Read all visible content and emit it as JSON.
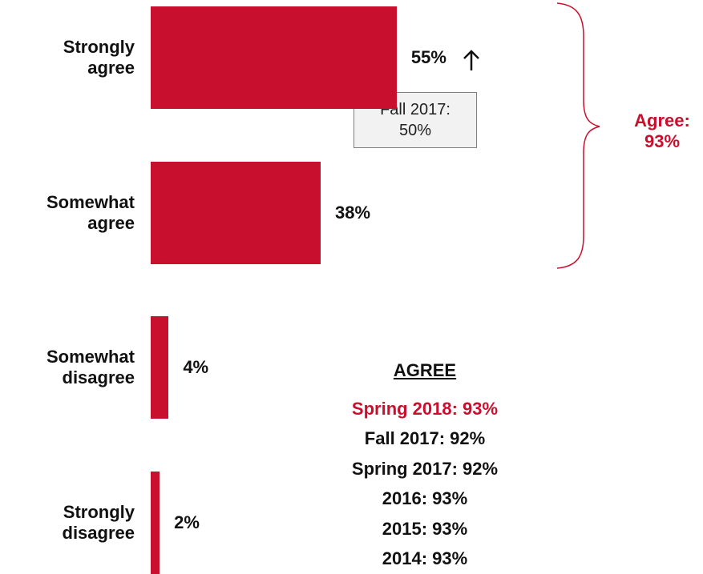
{
  "chart_data": {
    "type": "bar",
    "orientation": "horizontal",
    "categories": [
      "Strongly agree",
      "Somewhat agree",
      "Somewhat disagree",
      "Strongly disagree"
    ],
    "values": [
      55,
      38,
      4,
      2
    ],
    "value_labels": [
      "55%",
      "38%",
      "4%",
      "2%"
    ],
    "color": "#c8102e",
    "xlim": [
      0,
      100
    ],
    "callout": "Fall 2017: 50%",
    "bracket_label": "Agree: 93%",
    "summary": {
      "title": "AGREE",
      "lines": [
        "Spring 2018: 93%",
        "Fall 2017: 92%",
        "Spring 2017: 92%",
        "2016: 93%",
        "2015: 93%",
        "2014: 93%"
      ],
      "highlight_color": "#c8102e"
    }
  }
}
